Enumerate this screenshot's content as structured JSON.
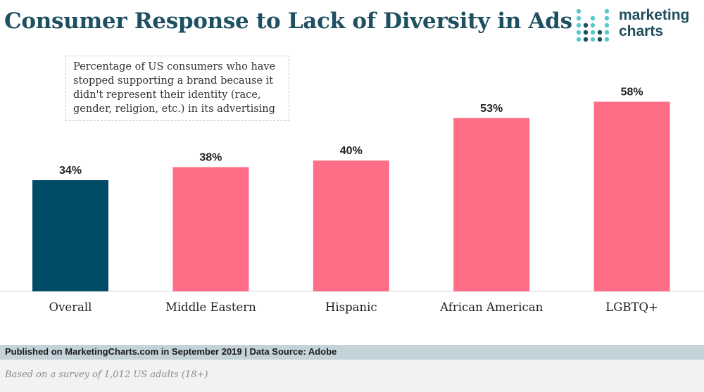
{
  "title": "Consumer Response to Lack of Diversity in Ads",
  "subtitle": "Percentage of US consumers who have stopped supporting a brand because it didn't represent their identity (race, gender, religion, etc.) in its advertising",
  "logo": {
    "line1": "marketing",
    "line2": "charts"
  },
  "footer": {
    "published": "Published on MarketingCharts.com in September 2019 | Data Source: Adobe",
    "note": "Based on a survey of 1,012 US adults (18+)"
  },
  "colors": {
    "highlight": "#004c66",
    "bar": "#ff6d87",
    "title": "#1e5061",
    "footer_bar": "#c4d2da"
  },
  "chart_data": {
    "type": "bar",
    "categories": [
      "Overall",
      "Middle Eastern",
      "Hispanic",
      "African American",
      "LGBTQ+"
    ],
    "values": [
      34,
      38,
      40,
      53,
      58
    ],
    "value_labels": [
      "34%",
      "38%",
      "40%",
      "53%",
      "58%"
    ],
    "highlight_index": 0,
    "ylim": [
      0,
      65
    ],
    "grid": false,
    "xlabel": "",
    "ylabel": ""
  }
}
